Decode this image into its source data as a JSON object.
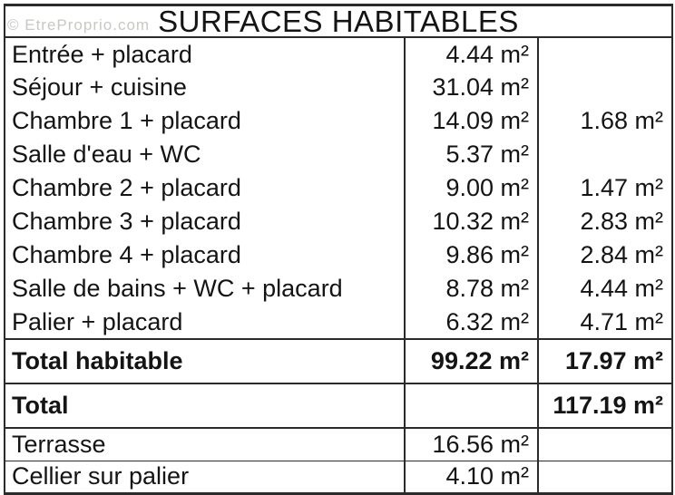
{
  "watermark": {
    "text": "© EtreProprio.com"
  },
  "title": "SURFACES HABITABLES",
  "colors": {
    "border": "#2b2b2b",
    "text": "#141414",
    "watermark": "#b4b0ab",
    "background": "#ffffff"
  },
  "rows": [
    {
      "label": "Entrée + placard",
      "surface": "4.44 m²",
      "extra": ""
    },
    {
      "label": "Séjour + cuisine",
      "surface": "31.04 m²",
      "extra": ""
    },
    {
      "label": "Chambre 1 + placard",
      "surface": "14.09 m²",
      "extra": "1.68 m²"
    },
    {
      "label": "Salle d'eau + WC",
      "surface": "5.37 m²",
      "extra": ""
    },
    {
      "label": "Chambre 2 + placard",
      "surface": "9.00 m²",
      "extra": "1.47 m²"
    },
    {
      "label": "Chambre 3 + placard",
      "surface": "10.32 m²",
      "extra": "2.83 m²"
    },
    {
      "label": "Chambre 4 + placard",
      "surface": "9.86 m²",
      "extra": "2.84 m²"
    },
    {
      "label": "Salle de bains + WC + placard",
      "surface": "8.78 m²",
      "extra": "4.44 m²"
    },
    {
      "label": "Palier + placard",
      "surface": "6.32 m²",
      "extra": "4.71 m²"
    }
  ],
  "totals": [
    {
      "label": "Total habitable",
      "surface": "99.22 m²",
      "extra": "17.97 m²"
    },
    {
      "label": "Total",
      "surface": "",
      "extra": "117.19 m²"
    }
  ],
  "annex_rows": [
    {
      "label": "Terrasse",
      "surface": "16.56 m²",
      "extra": ""
    },
    {
      "label": "Cellier sur palier",
      "surface": "4.10 m²",
      "extra": ""
    }
  ]
}
